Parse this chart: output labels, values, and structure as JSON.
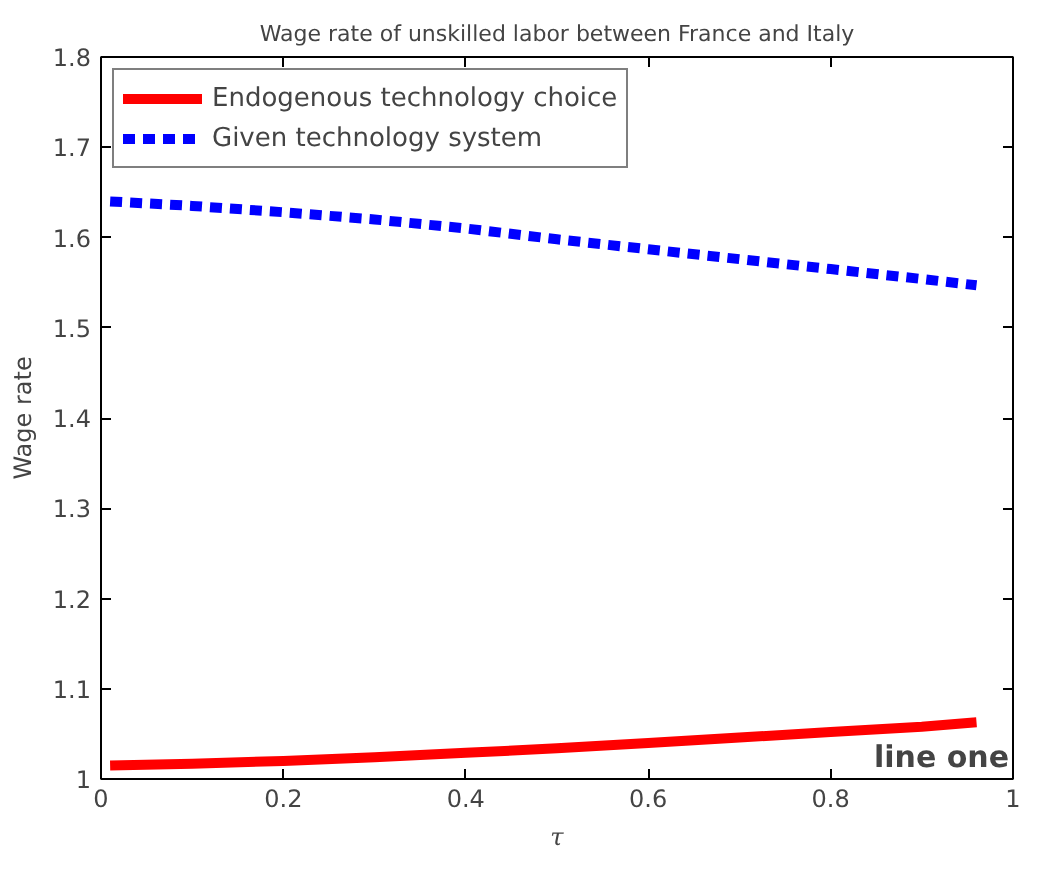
{
  "chart_data": {
    "type": "line",
    "title": "Wage rate of unskilled labor between France and Italy",
    "xlabel": "τ",
    "ylabel": "Wage rate",
    "x": [
      0.01,
      0.1,
      0.2,
      0.3,
      0.4,
      0.5,
      0.6,
      0.7,
      0.8,
      0.9,
      0.96
    ],
    "series": [
      {
        "name": "Endogenous technology choice",
        "color": "#ff0000",
        "line_style": "solid",
        "values": [
          1.015,
          1.017,
          1.02,
          1.024,
          1.029,
          1.034,
          1.04,
          1.046,
          1.052,
          1.058,
          1.063
        ]
      },
      {
        "name": "Given technology system",
        "color": "#0000ff",
        "line_style": "dashed",
        "values": [
          1.64,
          1.635,
          1.628,
          1.62,
          1.61,
          1.598,
          1.587,
          1.576,
          1.565,
          1.554,
          1.547
        ]
      }
    ],
    "xlim": [
      0,
      1
    ],
    "ylim": [
      1,
      1.8
    ],
    "xticks": [
      0,
      0.2,
      0.4,
      0.6,
      0.8,
      1
    ],
    "yticks": [
      1,
      1.1,
      1.2,
      1.3,
      1.4,
      1.5,
      1.6,
      1.7,
      1.8
    ],
    "grid": false,
    "legend": "top left",
    "annotations": [
      "line one"
    ]
  }
}
